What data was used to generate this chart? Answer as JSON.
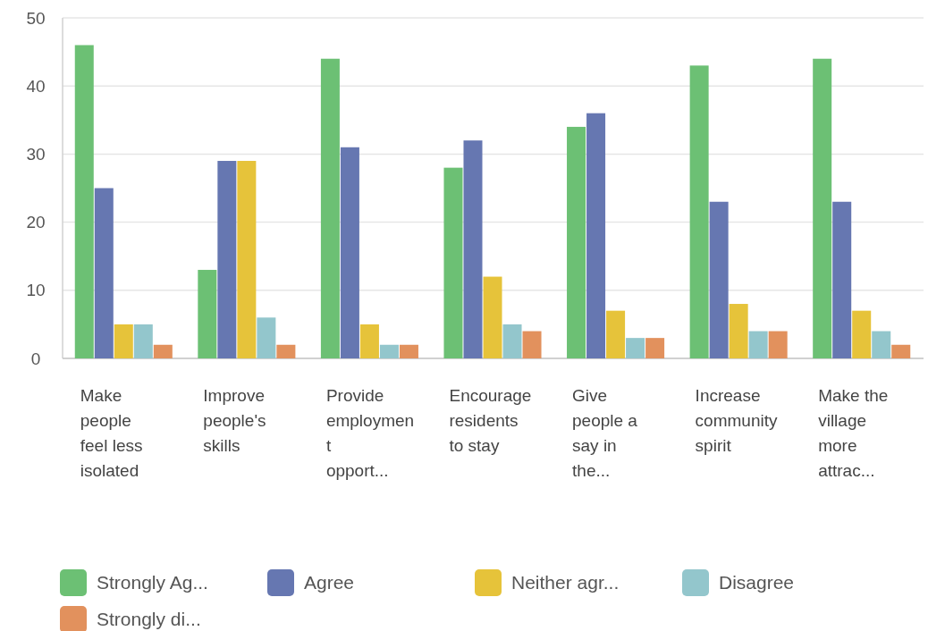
{
  "chart_data": {
    "type": "bar",
    "categories": [
      "Make\npeople\nfeel less\nisolated",
      "Improve\npeople's\nskills",
      "Provide\nemploymen\nt\nopport...",
      "Encourage\nresidents\nto stay",
      "Give\npeople a\nsay in\nthe...",
      "Increase\ncommunity\nspirit",
      "Make the\nvillage\nmore\nattrac..."
    ],
    "series": [
      {
        "name": "Strongly Ag...",
        "color": "#6cc074",
        "values": [
          46,
          13,
          44,
          28,
          34,
          43,
          44
        ]
      },
      {
        "name": "Agree",
        "color": "#6677b1",
        "values": [
          25,
          29,
          31,
          32,
          36,
          23,
          23
        ]
      },
      {
        "name": "Neither agr...",
        "color": "#e6c33a",
        "values": [
          5,
          29,
          5,
          12,
          7,
          8,
          7
        ]
      },
      {
        "name": "Disagree",
        "color": "#93c6cc",
        "values": [
          5,
          6,
          2,
          5,
          3,
          4,
          4
        ]
      },
      {
        "name": "Strongly di...",
        "color": "#e2915d",
        "values": [
          2,
          2,
          2,
          4,
          3,
          4,
          2
        ]
      }
    ],
    "ylim": [
      0,
      50
    ],
    "yticks": [
      0,
      10,
      20,
      30,
      40,
      50
    ],
    "grid": "y",
    "legend": "bottom"
  }
}
